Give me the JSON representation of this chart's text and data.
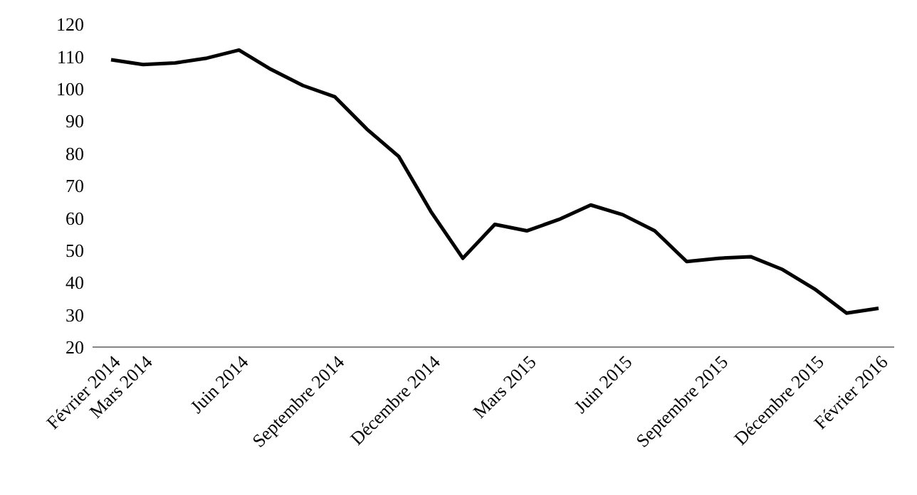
{
  "chart_data": {
    "type": "line",
    "categories": [
      "Février 2014",
      "Mars 2014",
      null,
      null,
      "Juin 2014",
      null,
      null,
      "Septembre 2014",
      null,
      null,
      "Décembre 2014",
      null,
      null,
      "Mars 2015",
      null,
      null,
      "Juin 2015",
      null,
      null,
      "Septembre 2015",
      null,
      null,
      "Décembre 2015",
      null,
      "Février 2016"
    ],
    "series": [
      {
        "color": "#000000",
        "values": [
          109,
          107.5,
          108,
          109.5,
          112,
          106,
          101,
          97.5,
          87.5,
          79,
          62,
          47.5,
          58,
          56,
          59.5,
          64,
          61,
          56,
          46.5,
          47.5,
          48,
          44,
          38,
          30.5,
          32
        ]
      }
    ],
    "ylim": [
      20,
      120
    ],
    "yticks": [
      20,
      30,
      40,
      50,
      60,
      70,
      80,
      90,
      100,
      110,
      120
    ],
    "grid": false,
    "marker": "none",
    "line_style": "solid"
  }
}
